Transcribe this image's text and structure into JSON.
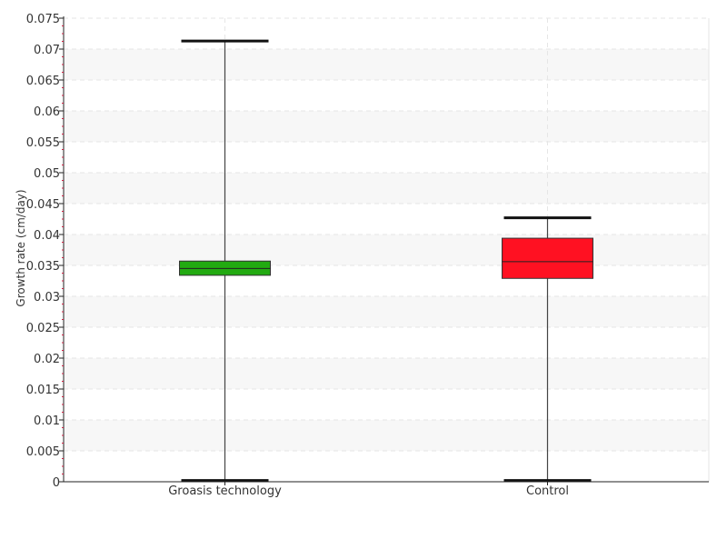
{
  "chart_data": {
    "type": "boxplot",
    "title": "",
    "xlabel": "",
    "ylabel": "Growth rate (cm/day)",
    "ylim": [
      0,
      0.075
    ],
    "yticks": [
      "0",
      "0.005",
      "0.01",
      "0.015",
      "0.02",
      "0.025",
      "0.03",
      "0.035",
      "0.04",
      "0.045",
      "0.05",
      "0.055",
      "0.06",
      "0.065",
      "0.07",
      "0.075"
    ],
    "grid": true,
    "categories": [
      "Groasis technology",
      "Control"
    ],
    "boxes": [
      {
        "category": "Groasis technology",
        "min": 0.0002,
        "q1": 0.0334,
        "median": 0.0345,
        "q3": 0.0357,
        "max": 0.0713,
        "color": "#22aa11"
      },
      {
        "category": "Control",
        "min": 0.0002,
        "q1": 0.0329,
        "median": 0.0356,
        "q3": 0.0394,
        "max": 0.0427,
        "color": "#ff1122"
      }
    ]
  }
}
